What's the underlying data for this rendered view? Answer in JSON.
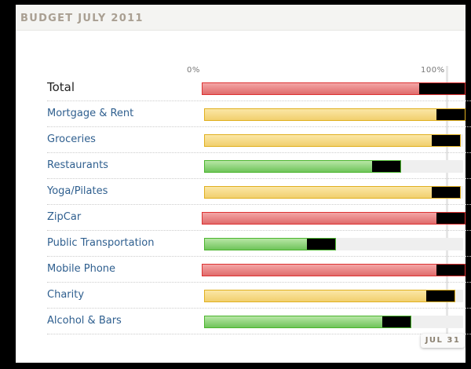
{
  "title": "BUDGET JULY 2011",
  "axis": {
    "min_label": "0%",
    "max_label": "100%"
  },
  "today_label": "JUL 31",
  "colors": {
    "over": "#e06b6b",
    "warning": "#f1cf6e",
    "ok": "#6fc45a"
  },
  "rows": [
    {
      "label": "Total",
      "percent": 101,
      "status": "red"
    },
    {
      "label": "Mortgage & Rent",
      "percent": 101,
      "status": "yellow"
    },
    {
      "label": "Groceries",
      "percent": 99,
      "status": "yellow"
    },
    {
      "label": "Restaurants",
      "percent": 76,
      "status": "green"
    },
    {
      "label": "Yoga/Pilates",
      "percent": 99,
      "status": "yellow"
    },
    {
      "label": "ZipCar",
      "percent": 101,
      "status": "red"
    },
    {
      "label": "Public Transportation",
      "percent": 51,
      "status": "green"
    },
    {
      "label": "Mobile Phone",
      "percent": 101,
      "status": "red"
    },
    {
      "label": "Charity",
      "percent": 97,
      "status": "yellow"
    },
    {
      "label": "Alcohol & Bars",
      "percent": 80,
      "status": "green"
    }
  ]
}
